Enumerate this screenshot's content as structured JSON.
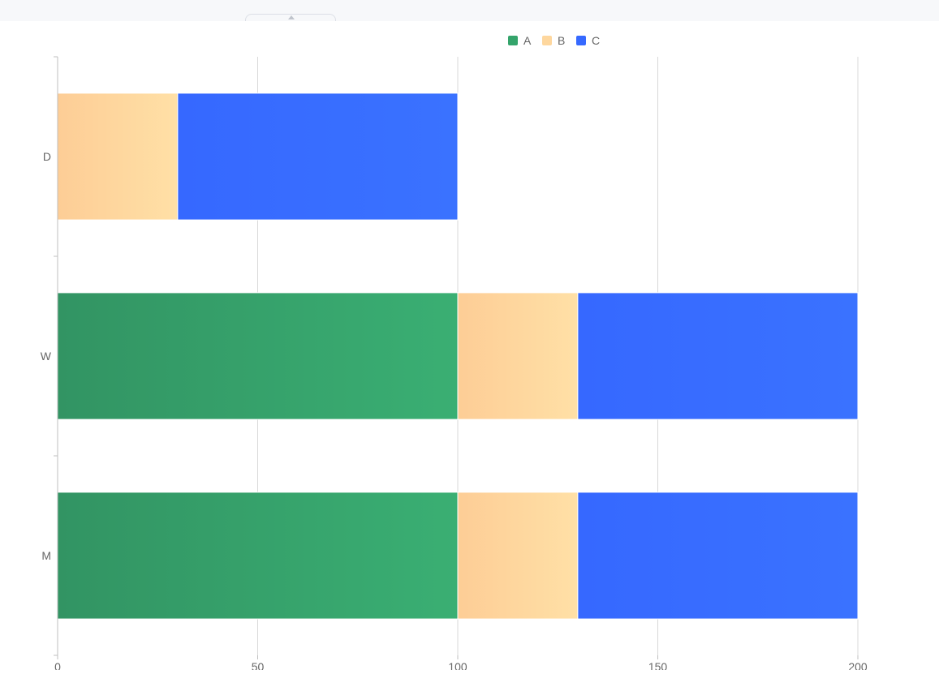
{
  "chart_data": {
    "type": "bar",
    "orientation": "horizontal",
    "stacked": true,
    "categories": [
      "M",
      "W",
      "D"
    ],
    "series": [
      {
        "name": "A",
        "values": [
          100,
          100,
          0
        ],
        "color_start": "#329463",
        "color_end": "#3aaf73"
      },
      {
        "name": "B",
        "values": [
          30,
          30,
          30
        ],
        "color_start": "#fdcd96",
        "color_end": "#ffe0a6"
      },
      {
        "name": "C",
        "values": [
          70,
          70,
          70
        ],
        "color_start": "#3668ff",
        "color_end": "#3a72ff"
      }
    ],
    "xlim": [
      0,
      200
    ],
    "xticks": [
      0,
      50,
      100,
      150,
      200
    ],
    "grid": true,
    "legend": "top-center",
    "legend_colors": {
      "A": "#34a46b",
      "B": "#fed79e",
      "C": "#3669ff"
    }
  }
}
